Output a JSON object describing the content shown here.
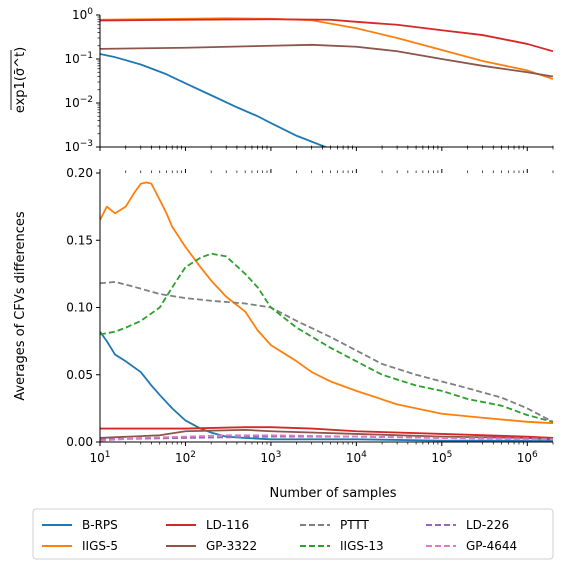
{
  "chart_data": [
    {
      "type": "line",
      "panel": "top",
      "ylabel": "exp1(σ̄^t)",
      "yscale": "log",
      "xscale": "log",
      "xlim": [
        10,
        2000000
      ],
      "ylim": [
        0.001,
        1.0
      ],
      "yticks": [
        {
          "value": 1.0,
          "base": "10",
          "exp": "0"
        },
        {
          "value": 0.1,
          "base": "10",
          "exp": "−1"
        },
        {
          "value": 0.01,
          "base": "10",
          "exp": "−2"
        },
        {
          "value": 0.001,
          "base": "10",
          "exp": "−3"
        }
      ],
      "series": [
        {
          "name": "B-RPS",
          "color": "#1f77b4",
          "dash": "solid",
          "x": [
            10,
            15,
            30,
            60,
            100,
            200,
            400,
            700,
            1000,
            2000,
            5000
          ],
          "y": [
            0.13,
            0.11,
            0.075,
            0.045,
            0.028,
            0.015,
            0.008,
            0.005,
            0.0035,
            0.0018,
            0.0009
          ]
        },
        {
          "name": "IIGS-5",
          "color": "#ff7f0e",
          "dash": "solid",
          "x": [
            10,
            30,
            100,
            300,
            1000,
            3000,
            10000,
            30000,
            100000,
            300000,
            1000000,
            2000000
          ],
          "y": [
            0.78,
            0.8,
            0.82,
            0.84,
            0.82,
            0.76,
            0.5,
            0.3,
            0.16,
            0.09,
            0.055,
            0.035
          ]
        },
        {
          "name": "LD-116",
          "color": "#d62728",
          "dash": "solid",
          "x": [
            10,
            100,
            1000,
            5000,
            10000,
            30000,
            100000,
            300000,
            1000000,
            2000000
          ],
          "y": [
            0.75,
            0.78,
            0.8,
            0.78,
            0.7,
            0.6,
            0.45,
            0.35,
            0.22,
            0.15
          ]
        },
        {
          "name": "GP-3322",
          "color": "#8c564b",
          "dash": "solid",
          "x": [
            10,
            100,
            1000,
            3000,
            10000,
            30000,
            100000,
            300000,
            1000000,
            2000000
          ],
          "y": [
            0.17,
            0.18,
            0.2,
            0.21,
            0.19,
            0.15,
            0.1,
            0.07,
            0.05,
            0.04
          ]
        }
      ]
    },
    {
      "type": "line",
      "panel": "bottom",
      "xlabel": "Number of samples",
      "ylabel": "Averages of CFVs differences",
      "xscale": "log",
      "xlim": [
        10,
        2000000
      ],
      "ylim": [
        0,
        0.2
      ],
      "yticks": [
        "0.00",
        "0.05",
        "0.10",
        "0.15",
        "0.20"
      ],
      "ytick_values": [
        0,
        0.05,
        0.1,
        0.15,
        0.2
      ],
      "xticks": [
        {
          "value": 10,
          "base": "10",
          "exp": "1"
        },
        {
          "value": 100,
          "base": "10",
          "exp": "2"
        },
        {
          "value": 1000,
          "base": "10",
          "exp": "3"
        },
        {
          "value": 10000,
          "base": "10",
          "exp": "4"
        },
        {
          "value": 100000,
          "base": "10",
          "exp": "5"
        },
        {
          "value": 1000000,
          "base": "10",
          "exp": "6"
        }
      ],
      "series": [
        {
          "name": "B-RPS",
          "color": "#1f77b4",
          "dash": "solid",
          "x": [
            10,
            12,
            15,
            20,
            30,
            40,
            50,
            70,
            100,
            150,
            200,
            300,
            500,
            1000,
            10000,
            100000,
            1000000,
            2000000
          ],
          "y": [
            0.082,
            0.075,
            0.065,
            0.06,
            0.052,
            0.042,
            0.035,
            0.025,
            0.016,
            0.01,
            0.007,
            0.004,
            0.003,
            0.002,
            0.002,
            0.001,
            0.001,
            0.001
          ]
        },
        {
          "name": "IIGS-5",
          "color": "#ff7f0e",
          "dash": "solid",
          "x": [
            10,
            12,
            15,
            20,
            25,
            30,
            35,
            40,
            50,
            60,
            70,
            100,
            150,
            200,
            300,
            500,
            700,
            1000,
            1500,
            2000,
            3000,
            5000,
            10000,
            30000,
            100000,
            300000,
            1000000,
            2000000
          ],
          "y": [
            0.165,
            0.175,
            0.17,
            0.175,
            0.185,
            0.192,
            0.193,
            0.192,
            0.18,
            0.17,
            0.16,
            0.145,
            0.13,
            0.12,
            0.108,
            0.097,
            0.083,
            0.072,
            0.065,
            0.06,
            0.052,
            0.045,
            0.038,
            0.028,
            0.021,
            0.018,
            0.015,
            0.014
          ]
        },
        {
          "name": "LD-116",
          "color": "#d62728",
          "dash": "solid",
          "x": [
            10,
            100,
            500,
            1000,
            3000,
            10000,
            100000,
            1000000,
            2000000
          ],
          "y": [
            0.01,
            0.01,
            0.011,
            0.011,
            0.01,
            0.008,
            0.006,
            0.004,
            0.003
          ]
        },
        {
          "name": "GP-3322",
          "color": "#8c564b",
          "dash": "solid",
          "x": [
            10,
            50,
            100,
            500,
            1000,
            10000,
            100000,
            1000000,
            2000000
          ],
          "y": [
            0.003,
            0.005,
            0.008,
            0.009,
            0.008,
            0.006,
            0.004,
            0.003,
            0.002
          ]
        },
        {
          "name": "PTTT",
          "color": "#7f7f7f",
          "dash": "dashed",
          "x": [
            10,
            15,
            20,
            30,
            50,
            100,
            200,
            500,
            1000,
            2000,
            5000,
            10000,
            20000,
            50000,
            100000,
            200000,
            500000,
            1000000,
            2000000
          ],
          "y": [
            0.118,
            0.119,
            0.117,
            0.114,
            0.11,
            0.107,
            0.105,
            0.103,
            0.1,
            0.09,
            0.078,
            0.068,
            0.058,
            0.05,
            0.045,
            0.04,
            0.033,
            0.025,
            0.015
          ]
        },
        {
          "name": "IIGS-13",
          "color": "#2ca02c",
          "dash": "dashed",
          "x": [
            10,
            15,
            20,
            30,
            50,
            70,
            100,
            150,
            200,
            300,
            500,
            700,
            1000,
            2000,
            5000,
            10000,
            20000,
            50000,
            100000,
            200000,
            500000,
            1000000,
            2000000
          ],
          "y": [
            0.08,
            0.082,
            0.085,
            0.09,
            0.1,
            0.115,
            0.13,
            0.137,
            0.14,
            0.138,
            0.125,
            0.115,
            0.1,
            0.085,
            0.07,
            0.06,
            0.05,
            0.042,
            0.038,
            0.032,
            0.027,
            0.02,
            0.015
          ]
        },
        {
          "name": "LD-226",
          "color": "#9467bd",
          "dash": "dashed",
          "x": [
            10,
            100,
            1000,
            10000,
            100000,
            1000000,
            2000000
          ],
          "y": [
            0.002,
            0.003,
            0.004,
            0.004,
            0.003,
            0.003,
            0.002
          ]
        },
        {
          "name": "GP-4644",
          "color": "#e377c2",
          "dash": "dashed",
          "x": [
            10,
            30,
            100,
            300,
            1000,
            10000,
            100000,
            1000000,
            2000000
          ],
          "y": [
            0.001,
            0.003,
            0.004,
            0.005,
            0.005,
            0.004,
            0.003,
            0.002,
            0.002
          ]
        }
      ]
    }
  ],
  "legend": {
    "placement": "bottom",
    "columns": 4,
    "entries": [
      {
        "name": "B-RPS",
        "color": "#1f77b4",
        "dash": "solid"
      },
      {
        "name": "IIGS-5",
        "color": "#ff7f0e",
        "dash": "solid"
      },
      {
        "name": "LD-116",
        "color": "#d62728",
        "dash": "solid"
      },
      {
        "name": "GP-3322",
        "color": "#8c564b",
        "dash": "solid"
      },
      {
        "name": "PTTT",
        "color": "#7f7f7f",
        "dash": "dashed"
      },
      {
        "name": "IIGS-13",
        "color": "#2ca02c",
        "dash": "dashed"
      },
      {
        "name": "LD-226",
        "color": "#9467bd",
        "dash": "dashed"
      },
      {
        "name": "GP-4644",
        "color": "#e377c2",
        "dash": "dashed"
      }
    ]
  }
}
